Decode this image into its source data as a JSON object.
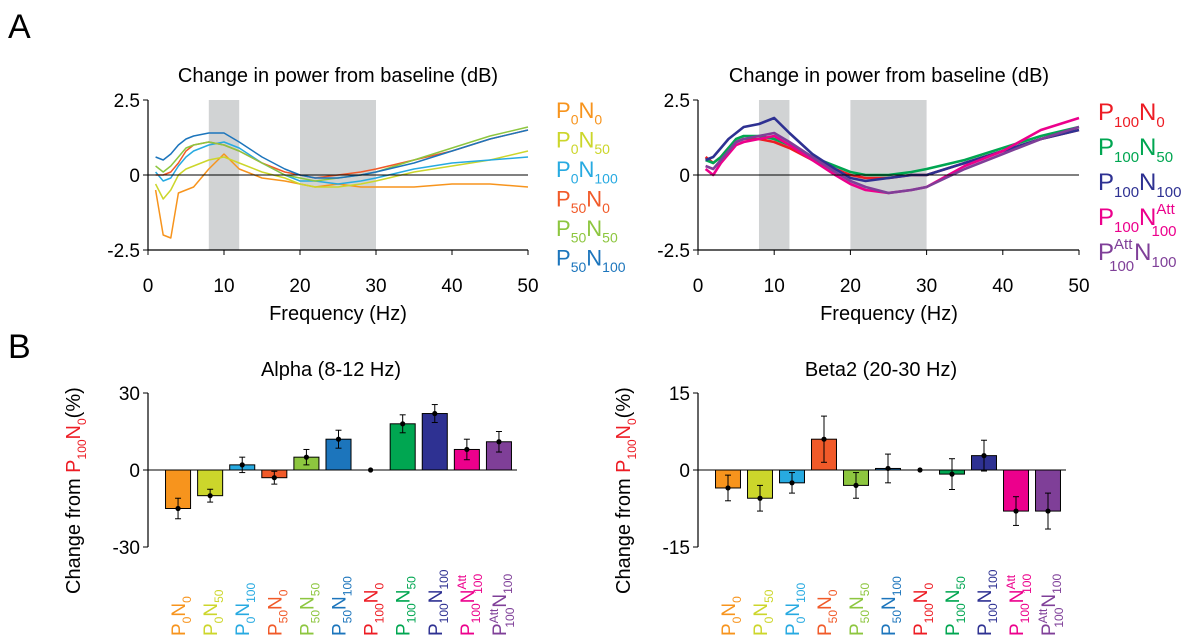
{
  "panel_labels": {
    "a": "A",
    "b": "B"
  },
  "legend_left": [
    {
      "p": "0",
      "pa": "",
      "n": "0",
      "na": "",
      "color": "#F7941D"
    },
    {
      "p": "0",
      "pa": "",
      "n": "50",
      "na": "",
      "color": "#CCD62B"
    },
    {
      "p": "0",
      "pa": "",
      "n": "100",
      "na": "",
      "color": "#27AAE1"
    },
    {
      "p": "50",
      "pa": "",
      "n": "0",
      "na": "",
      "color": "#F15A29"
    },
    {
      "p": "50",
      "pa": "",
      "n": "50",
      "na": "",
      "color": "#8DC63F"
    },
    {
      "p": "50",
      "pa": "",
      "n": "100",
      "na": "",
      "color": "#1C75BC"
    }
  ],
  "legend_right": [
    {
      "p": "100",
      "pa": "",
      "n": "0",
      "na": "",
      "color": "#ED1C24"
    },
    {
      "p": "100",
      "pa": "",
      "n": "50",
      "na": "",
      "color": "#00A651"
    },
    {
      "p": "100",
      "pa": "",
      "n": "100",
      "na": "",
      "color": "#2E3192"
    },
    {
      "p": "100",
      "pa": "",
      "n": "100",
      "na": "Att",
      "color": "#EC008C"
    },
    {
      "p": "100",
      "pa": "Att",
      "n": "100",
      "na": "",
      "color": "#7F3F98"
    }
  ],
  "chart_data": [
    {
      "type": "line",
      "title": "Change in power from baseline (dB)",
      "xlabel": "Frequency (Hz)",
      "ylabel": "",
      "xlim": [
        0,
        50
      ],
      "ylim": [
        -2.5,
        2.5
      ],
      "xticks": [
        "0",
        "10",
        "20",
        "30",
        "40",
        "50"
      ],
      "yticks": [
        "2.5",
        "0",
        "-2.5"
      ],
      "shaded_bands_hz": [
        [
          8,
          12
        ],
        [
          20,
          30
        ]
      ],
      "x": [
        1,
        2,
        3,
        4,
        5,
        6,
        8,
        10,
        12,
        15,
        18,
        20,
        22,
        25,
        28,
        30,
        35,
        40,
        45,
        50
      ],
      "series": [
        {
          "label_index": 0,
          "color": "#F7941D",
          "values": [
            -0.5,
            -2.0,
            -2.1,
            -0.6,
            -0.5,
            -0.4,
            0.2,
            0.7,
            0.2,
            -0.1,
            -0.2,
            -0.3,
            -0.4,
            -0.3,
            -0.4,
            -0.4,
            -0.4,
            -0.3,
            -0.3,
            -0.4
          ]
        },
        {
          "label_index": 1,
          "color": "#CCD62B",
          "values": [
            -0.3,
            -0.8,
            -0.5,
            0.0,
            0.2,
            0.3,
            0.5,
            0.6,
            0.4,
            0.1,
            -0.1,
            -0.3,
            -0.4,
            -0.4,
            -0.3,
            -0.2,
            0.1,
            0.3,
            0.5,
            0.8
          ]
        },
        {
          "label_index": 2,
          "color": "#27AAE1",
          "values": [
            0.1,
            -0.2,
            -0.1,
            0.3,
            0.6,
            0.8,
            1.0,
            1.1,
            0.9,
            0.4,
            0.0,
            -0.2,
            -0.2,
            -0.3,
            -0.2,
            -0.1,
            0.2,
            0.4,
            0.5,
            0.6
          ]
        },
        {
          "label_index": 3,
          "color": "#F15A29",
          "values": [
            0.0,
            0.0,
            0.1,
            0.4,
            0.8,
            1.0,
            1.1,
            1.0,
            0.8,
            0.4,
            0.1,
            0.0,
            -0.1,
            0.0,
            0.1,
            0.2,
            0.5,
            0.8,
            1.2,
            1.5
          ]
        },
        {
          "label_index": 4,
          "color": "#8DC63F",
          "values": [
            0.3,
            0.1,
            0.3,
            0.6,
            0.9,
            1.0,
            1.1,
            1.0,
            0.8,
            0.4,
            0.0,
            -0.1,
            -0.2,
            -0.1,
            0.0,
            0.1,
            0.5,
            0.9,
            1.3,
            1.6
          ]
        },
        {
          "label_index": 5,
          "color": "#1C75BC",
          "values": [
            0.6,
            0.5,
            0.7,
            1.0,
            1.2,
            1.3,
            1.4,
            1.4,
            1.1,
            0.6,
            0.2,
            0.0,
            -0.1,
            -0.1,
            0.0,
            0.1,
            0.4,
            0.8,
            1.2,
            1.5
          ]
        }
      ]
    },
    {
      "type": "line",
      "title": "Change in power from baseline (dB)",
      "xlabel": "Frequency (Hz)",
      "ylabel": "",
      "xlim": [
        0,
        50
      ],
      "ylim": [
        -2.5,
        2.5
      ],
      "xticks": [
        "0",
        "10",
        "20",
        "30",
        "40",
        "50"
      ],
      "yticks": [
        "2.5",
        "0",
        "-2.5"
      ],
      "shaded_bands_hz": [
        [
          8,
          12
        ],
        [
          20,
          30
        ]
      ],
      "x": [
        1,
        2,
        3,
        4,
        5,
        6,
        8,
        10,
        12,
        15,
        18,
        20,
        22,
        25,
        28,
        30,
        35,
        40,
        45,
        50
      ],
      "series": [
        {
          "label_index": 0,
          "color": "#ED1C24",
          "values": [
            0.6,
            0.4,
            0.6,
            0.9,
            1.1,
            1.2,
            1.2,
            1.1,
            0.9,
            0.5,
            0.2,
            0.0,
            -0.1,
            -0.1,
            0.0,
            0.0,
            0.4,
            0.8,
            1.2,
            1.5
          ]
        },
        {
          "label_index": 1,
          "color": "#00A651",
          "values": [
            0.5,
            0.4,
            0.6,
            0.9,
            1.2,
            1.3,
            1.3,
            1.2,
            1.0,
            0.6,
            0.3,
            0.1,
            0.0,
            0.0,
            0.1,
            0.2,
            0.5,
            0.9,
            1.3,
            1.6
          ]
        },
        {
          "label_index": 2,
          "color": "#2E3192",
          "values": [
            0.5,
            0.6,
            0.9,
            1.2,
            1.4,
            1.6,
            1.7,
            1.9,
            1.4,
            0.7,
            0.2,
            -0.1,
            -0.2,
            -0.1,
            0.0,
            0.0,
            0.4,
            0.8,
            1.2,
            1.5
          ]
        },
        {
          "label_index": 3,
          "color": "#EC008C",
          "values": [
            0.2,
            0.0,
            0.4,
            0.7,
            1.0,
            1.1,
            1.2,
            1.3,
            1.0,
            0.5,
            0.0,
            -0.3,
            -0.5,
            -0.6,
            -0.5,
            -0.4,
            0.3,
            0.8,
            1.5,
            1.9
          ]
        },
        {
          "label_index": 4,
          "color": "#7F3F98",
          "values": [
            0.3,
            0.2,
            0.5,
            0.8,
            1.1,
            1.2,
            1.3,
            1.4,
            1.1,
            0.6,
            0.1,
            -0.2,
            -0.4,
            -0.6,
            -0.5,
            -0.4,
            0.2,
            0.7,
            1.2,
            1.6
          ]
        }
      ]
    },
    {
      "type": "bar",
      "title": "Alpha (8-12 Hz)",
      "ylabel": "Change from P100N0(%)",
      "ylim": [
        -30,
        30
      ],
      "yticks": [
        "30",
        "0",
        "-30"
      ],
      "categories": [
        "P0N0",
        "P0N50",
        "P0N100",
        "P50N0",
        "P50N50",
        "P50N100",
        "P100N0",
        "P100N50",
        "P100N100",
        "P100N100Att",
        "P100AttN100"
      ],
      "values": [
        -15,
        -10,
        2,
        -3,
        5,
        12,
        0,
        18,
        22,
        8,
        11
      ],
      "errors": [
        4,
        2.5,
        3,
        2.5,
        3,
        3.5,
        0,
        3.5,
        3.5,
        4,
        4
      ],
      "colors": [
        "#F7941D",
        "#CCD62B",
        "#27AAE1",
        "#F15A29",
        "#8DC63F",
        "#1C75BC",
        "#ED1C24",
        "#00A651",
        "#2E3192",
        "#EC008C",
        "#7F3F98"
      ]
    },
    {
      "type": "bar",
      "title": "Beta2 (20-30 Hz)",
      "ylabel": "Change from P100N0(%)",
      "ylim": [
        -15,
        15
      ],
      "yticks": [
        "15",
        "0",
        "-15"
      ],
      "categories": [
        "P0N0",
        "P0N50",
        "P0N100",
        "P50N0",
        "P50N50",
        "P50N100",
        "P100N0",
        "P100N50",
        "P100N100",
        "P100N100Att",
        "P100AttN100"
      ],
      "values": [
        -3.5,
        -5.5,
        -2.5,
        6,
        -3,
        0.3,
        0,
        -0.8,
        2.8,
        -8,
        -8
      ],
      "errors": [
        2.5,
        2.5,
        2,
        4.5,
        2.5,
        2.8,
        0,
        3,
        3,
        2.8,
        3.5
      ],
      "colors": [
        "#F7941D",
        "#CCD62B",
        "#27AAE1",
        "#F15A29",
        "#8DC63F",
        "#1C75BC",
        "#ED1C24",
        "#00A651",
        "#2E3192",
        "#EC008C",
        "#7F3F98"
      ]
    }
  ]
}
